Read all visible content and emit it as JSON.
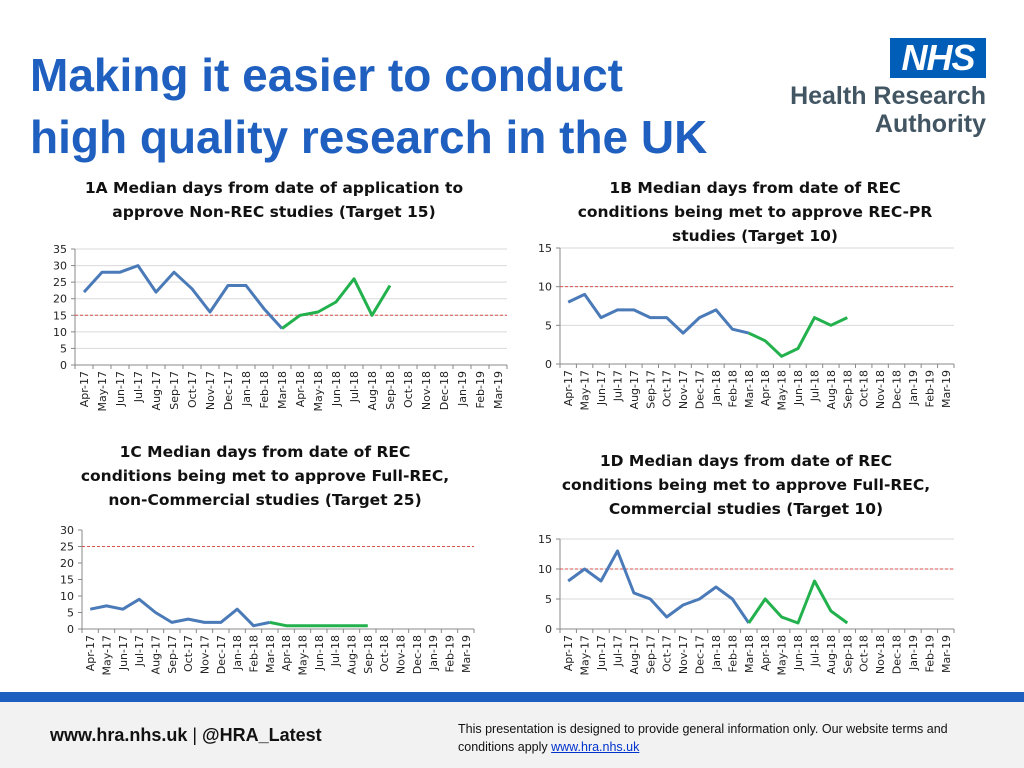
{
  "slide": {
    "title_line1": "Making it easier to conduct",
    "title_line2": "high quality research in the UK"
  },
  "logo": {
    "badge": "NHS",
    "line1": "Health Research",
    "line2": "Authority"
  },
  "footer": {
    "left_site": "www.hra.nhs.uk",
    "left_sep": " | ",
    "left_handle": "@HRA_Latest",
    "right_text": "This presentation is designed to provide general information only. Our website terms and conditions apply ",
    "right_link": "www.hra.nhs.uk"
  },
  "colors": {
    "title": "#1f5fbf",
    "series_blue": "#4a7ab8",
    "series_green": "#22b14c",
    "target": "#d9534f",
    "band": "#1f5fbf"
  },
  "chart_data": [
    {
      "id": "1A",
      "type": "line",
      "title_line1": "1A Median days from date of application to",
      "title_line2": "approve Non-REC studies (Target 15)",
      "title_line3": "",
      "categories": [
        "Apr-17",
        "May-17",
        "Jun-17",
        "Jul-17",
        "Aug-17",
        "Sep-17",
        "Oct-17",
        "Nov-17",
        "Dec-17",
        "Jan-18",
        "Feb-18",
        "Mar-18",
        "Apr-18",
        "May-18",
        "Jun-18",
        "Jul-18",
        "Aug-18",
        "Sep-18",
        "Oct-18",
        "Nov-18",
        "Dec-18",
        "Jan-19",
        "Feb-19",
        "Mar-19"
      ],
      "series": [
        {
          "color": "#4a7ab8",
          "values": [
            22,
            28,
            28,
            30,
            22,
            28,
            23,
            16,
            24,
            24,
            17,
            11,
            null,
            null,
            null,
            null,
            null,
            null,
            null,
            null,
            null,
            null,
            null,
            null
          ]
        },
        {
          "color": "#22b14c",
          "values": [
            null,
            null,
            null,
            null,
            null,
            null,
            null,
            null,
            null,
            null,
            null,
            11,
            15,
            16,
            19,
            26,
            15,
            24,
            null,
            null,
            null,
            null,
            null,
            null
          ]
        }
      ],
      "target": 15,
      "ylim": [
        0,
        35
      ],
      "yticks": [
        0,
        5,
        10,
        15,
        20,
        25,
        30,
        35
      ],
      "grid": true
    },
    {
      "id": "1B",
      "type": "line",
      "title_line1": "1B Median days from date of REC",
      "title_line2": "conditions being met to approve REC-PR",
      "title_line3": "studies (Target 10)",
      "categories": [
        "Apr-17",
        "May-17",
        "Jun-17",
        "Jul-17",
        "Aug-17",
        "Sep-17",
        "Oct-17",
        "Nov-17",
        "Dec-17",
        "Jan-18",
        "Feb-18",
        "Mar-18",
        "Apr-18",
        "May-18",
        "Jun-18",
        "Jul-18",
        "Aug-18",
        "Sep-18",
        "Oct-18",
        "Nov-18",
        "Dec-18",
        "Jan-19",
        "Feb-19",
        "Mar-19"
      ],
      "series": [
        {
          "color": "#4a7ab8",
          "values": [
            8,
            9,
            6,
            7,
            7,
            6,
            6,
            4,
            6,
            7,
            4.5,
            4,
            null,
            null,
            null,
            null,
            null,
            null,
            null,
            null,
            null,
            null,
            null,
            null
          ]
        },
        {
          "color": "#22b14c",
          "values": [
            null,
            null,
            null,
            null,
            null,
            null,
            null,
            null,
            null,
            null,
            null,
            4,
            3,
            1,
            2,
            6,
            5,
            6,
            null,
            null,
            null,
            null,
            null,
            null
          ]
        }
      ],
      "target": 10,
      "ylim": [
        0,
        15
      ],
      "yticks": [
        0,
        5,
        10,
        15
      ],
      "grid": true
    },
    {
      "id": "1C",
      "type": "line",
      "title_line1": "1C Median days from date of REC",
      "title_line2": "conditions being met to approve Full-REC,",
      "title_line3": "non-Commercial studies (Target 25)",
      "categories": [
        "Apr-17",
        "May-17",
        "Jun-17",
        "Jul-17",
        "Aug-17",
        "Sep-17",
        "Oct-17",
        "Nov-17",
        "Dec-17",
        "Jan-18",
        "Feb-18",
        "Mar-18",
        "Apr-18",
        "May-18",
        "Jun-18",
        "Jul-18",
        "Aug-18",
        "Sep-18",
        "Oct-18",
        "Nov-18",
        "Dec-18",
        "Jan-19",
        "Feb-19",
        "Mar-19"
      ],
      "series": [
        {
          "color": "#4a7ab8",
          "values": [
            6,
            7,
            6,
            9,
            5,
            2,
            3,
            2,
            2,
            6,
            1,
            2,
            null,
            null,
            null,
            null,
            null,
            null,
            null,
            null,
            null,
            null,
            null,
            null
          ]
        },
        {
          "color": "#22b14c",
          "values": [
            null,
            null,
            null,
            null,
            null,
            null,
            null,
            null,
            null,
            null,
            null,
            2,
            1,
            1,
            1,
            1,
            1,
            1,
            null,
            null,
            null,
            null,
            null,
            null
          ]
        }
      ],
      "target": 25,
      "ylim": [
        0,
        30
      ],
      "yticks": [
        0,
        5,
        10,
        15,
        20,
        25,
        30
      ],
      "grid": false
    },
    {
      "id": "1D",
      "type": "line",
      "title_line1": "1D Median days from date of REC",
      "title_line2": "conditions being met to approve Full-REC,",
      "title_line3": "Commercial studies (Target 10)",
      "categories": [
        "Apr-17",
        "May-17",
        "Jun-17",
        "Jul-17",
        "Aug-17",
        "Sep-17",
        "Oct-17",
        "Nov-17",
        "Dec-17",
        "Jan-18",
        "Feb-18",
        "Mar-18",
        "Apr-18",
        "May-18",
        "Jun-18",
        "Jul-18",
        "Aug-18",
        "Sep-18",
        "Oct-18",
        "Nov-18",
        "Dec-18",
        "Jan-19",
        "Feb-19",
        "Mar-19"
      ],
      "series": [
        {
          "color": "#4a7ab8",
          "values": [
            8,
            10,
            8,
            13,
            6,
            5,
            2,
            4,
            5,
            7,
            5,
            1,
            null,
            null,
            null,
            null,
            null,
            null,
            null,
            null,
            null,
            null,
            null,
            null
          ]
        },
        {
          "color": "#22b14c",
          "values": [
            null,
            null,
            null,
            null,
            null,
            null,
            null,
            null,
            null,
            null,
            null,
            1,
            5,
            2,
            1,
            8,
            3,
            1,
            null,
            null,
            null,
            null,
            null,
            null
          ]
        }
      ],
      "target": 10,
      "ylim": [
        0,
        15
      ],
      "yticks": [
        0,
        5,
        10,
        15
      ],
      "grid": true
    }
  ]
}
